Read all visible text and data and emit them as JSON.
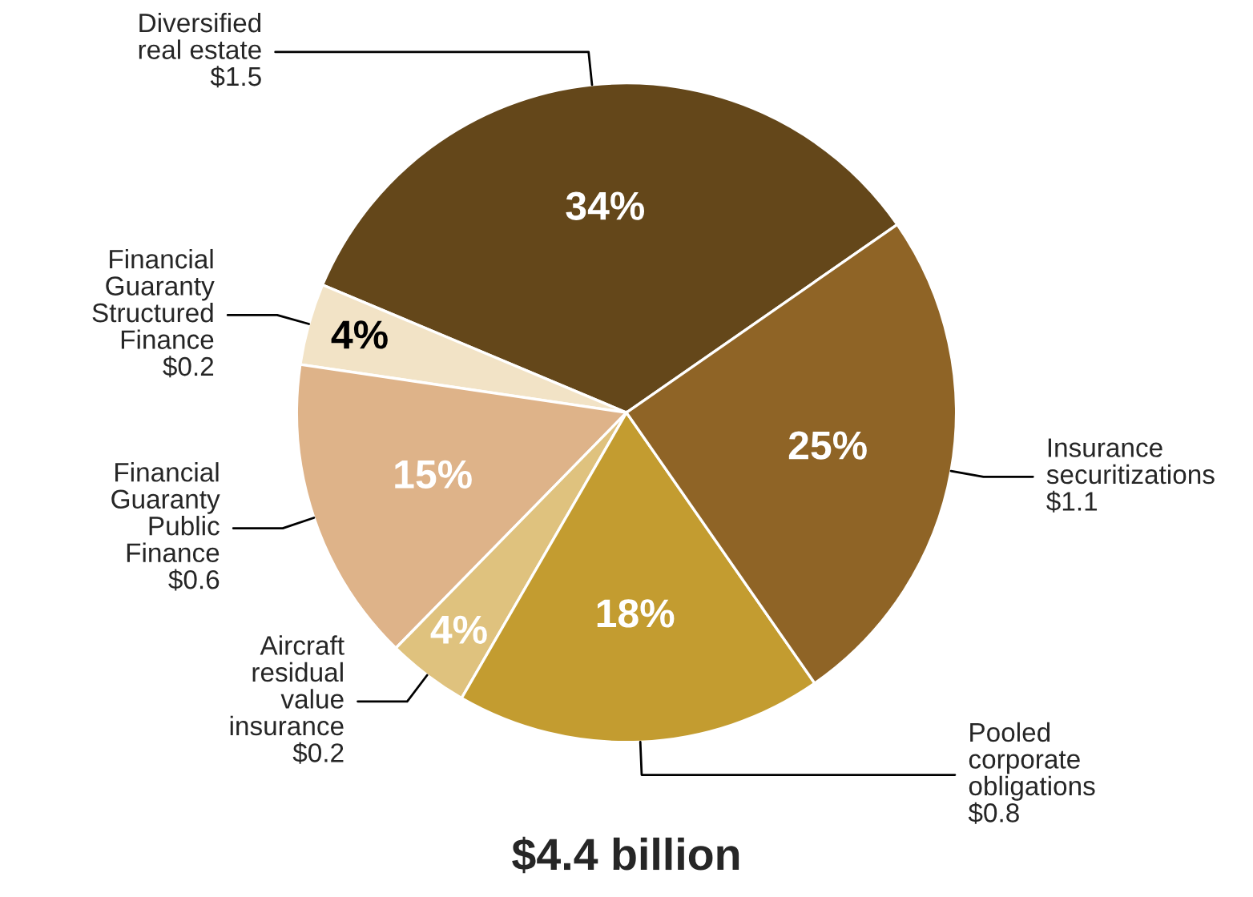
{
  "chart_data": {
    "type": "pie",
    "categories": [
      "Diversified\nreal estate\n$1.5",
      "Financial\nGuaranty\nStructured\nFinance\n$0.2",
      "Financial\nGuaranty\nPublic\nFinance\n$0.6",
      "Aircraft\nresidual\nvalue\ninsurance\n$0.2",
      "Pooled\ncorporate\nobligations\n$0.8",
      "Insurance\nsecuritizations\n$1.1"
    ],
    "values": [
      34,
      4,
      15,
      4,
      18,
      25
    ],
    "value_labels": [
      "34%",
      "4%",
      "15%",
      "4%",
      "18%",
      "25%"
    ],
    "colors": [
      "#64471a",
      "#f2e3c6",
      "#deb389",
      "#dfc27e",
      "#c39c30",
      "#8f6426"
    ],
    "annotations": [
      "$4.4 billion"
    ]
  }
}
